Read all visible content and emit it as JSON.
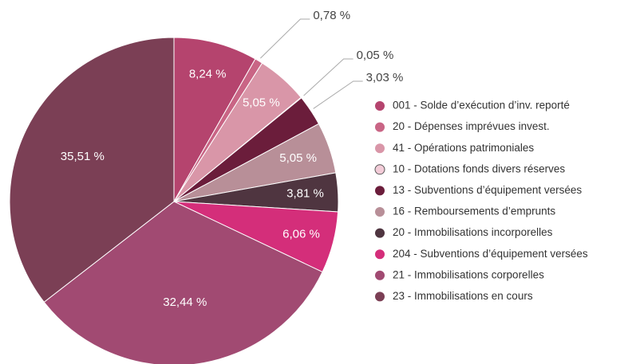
{
  "chart_data": {
    "type": "pie",
    "categories": [
      "001 - Solde d’exécution d’inv. reporté",
      "20 - Dépenses imprévues invest.",
      "41 - Opérations patrimoniales",
      "10 - Dotations fonds divers réserves",
      "13 - Subventions d’équipement versées",
      "16 - Remboursements d’emprunts",
      "20 - Immobilisations incorporelles",
      "204 - Subventions d’équipement versées",
      "21 - Immobilisations corporelles",
      "23 - Immobilisations en cours"
    ],
    "values": [
      8.24,
      0.78,
      5.05,
      0.05,
      3.03,
      5.05,
      3.81,
      6.06,
      32.44,
      35.51
    ],
    "value_labels": [
      "8,24 %",
      "0,78 %",
      "5,05 %",
      "0,05 %",
      "3,03 %",
      "5,05 %",
      "3,81 %",
      "6,06 %",
      "32,44 %",
      "35,51 %"
    ],
    "colors": [
      "#b5446e",
      "#c96585",
      "#d996a8",
      "#f3ccd8",
      "#6b1d3b",
      "#b88f98",
      "#4f3540",
      "#d42e7a",
      "#a14a72",
      "#7b3f55"
    ],
    "legend": "right"
  }
}
